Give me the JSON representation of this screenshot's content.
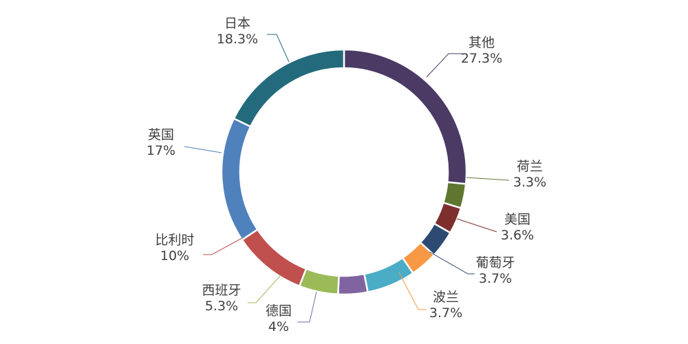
{
  "chart_data": {
    "type": "pie",
    "variant": "donut",
    "title": "",
    "legend": "none",
    "slices": [
      {
        "name": "其他",
        "value_label": "27.3%",
        "value": 27.3,
        "color": "#4a3a64"
      },
      {
        "name": "荷兰",
        "value_label": "3.3%",
        "value": 3.3,
        "color": "#5e7630"
      },
      {
        "name": "美国",
        "value_label": "3.6%",
        "value": 3.6,
        "color": "#7c2f2d"
      },
      {
        "name": "葡萄牙",
        "value_label": "3.7%",
        "value": 3.7,
        "color": "#2d4a72"
      },
      {
        "name": "波兰",
        "value_label": "3.7%",
        "value": 3.7,
        "color": "#f79845"
      },
      {
        "name": "",
        "value_label": "",
        "value": 6.6,
        "color": "#4bacc6"
      },
      {
        "name": "德国",
        "value_label": "4%",
        "value": 4.0,
        "color": "#8064a2"
      },
      {
        "name": "西班牙",
        "value_label": "5.3%",
        "value": 5.3,
        "color": "#9bbb59"
      },
      {
        "name": "比利时",
        "value_label": "10%",
        "value": 10.0,
        "color": "#c0504d"
      },
      {
        "name": "英国",
        "value_label": "17%",
        "value": 17.0,
        "color": "#4f81bd"
      },
      {
        "name": "日本",
        "value_label": "18.3%",
        "value": 18.3,
        "color": "#236b7c"
      }
    ]
  }
}
